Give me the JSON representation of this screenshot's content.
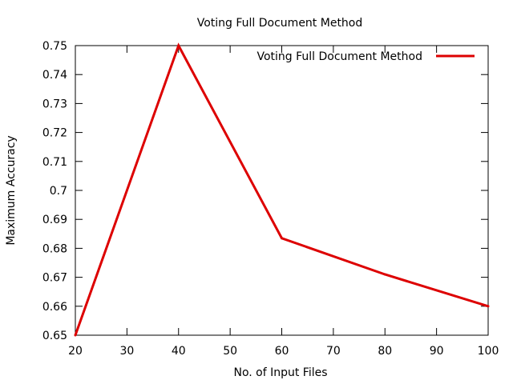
{
  "chart_data": {
    "type": "line",
    "title": "Voting Full Document Method",
    "xlabel": "No. of Input Files",
    "ylabel": "Maximum Accuracy",
    "xlim": [
      20,
      100
    ],
    "ylim": [
      0.65,
      0.75
    ],
    "x_ticks": [
      20,
      30,
      40,
      50,
      60,
      70,
      80,
      90,
      100
    ],
    "y_ticks": [
      0.65,
      0.66,
      0.67,
      0.68,
      0.69,
      0.7,
      0.71,
      0.72,
      0.73,
      0.74,
      0.75
    ],
    "x_tick_labels": [
      "20",
      "30",
      "40",
      "50",
      "60",
      "70",
      "80",
      "90",
      "100"
    ],
    "y_tick_labels": [
      "0.65",
      "0.66",
      "0.67",
      "0.68",
      "0.69",
      "0.7",
      "0.71",
      "0.72",
      "0.73",
      "0.74",
      "0.75"
    ],
    "grid": false,
    "legend_position": "top-right",
    "series": [
      {
        "name": "Voting Full Document Method",
        "color": "#dd0000",
        "x": [
          20,
          40,
          60,
          80,
          100
        ],
        "y": [
          0.65,
          0.75,
          0.6835,
          0.671,
          0.66
        ]
      }
    ]
  }
}
